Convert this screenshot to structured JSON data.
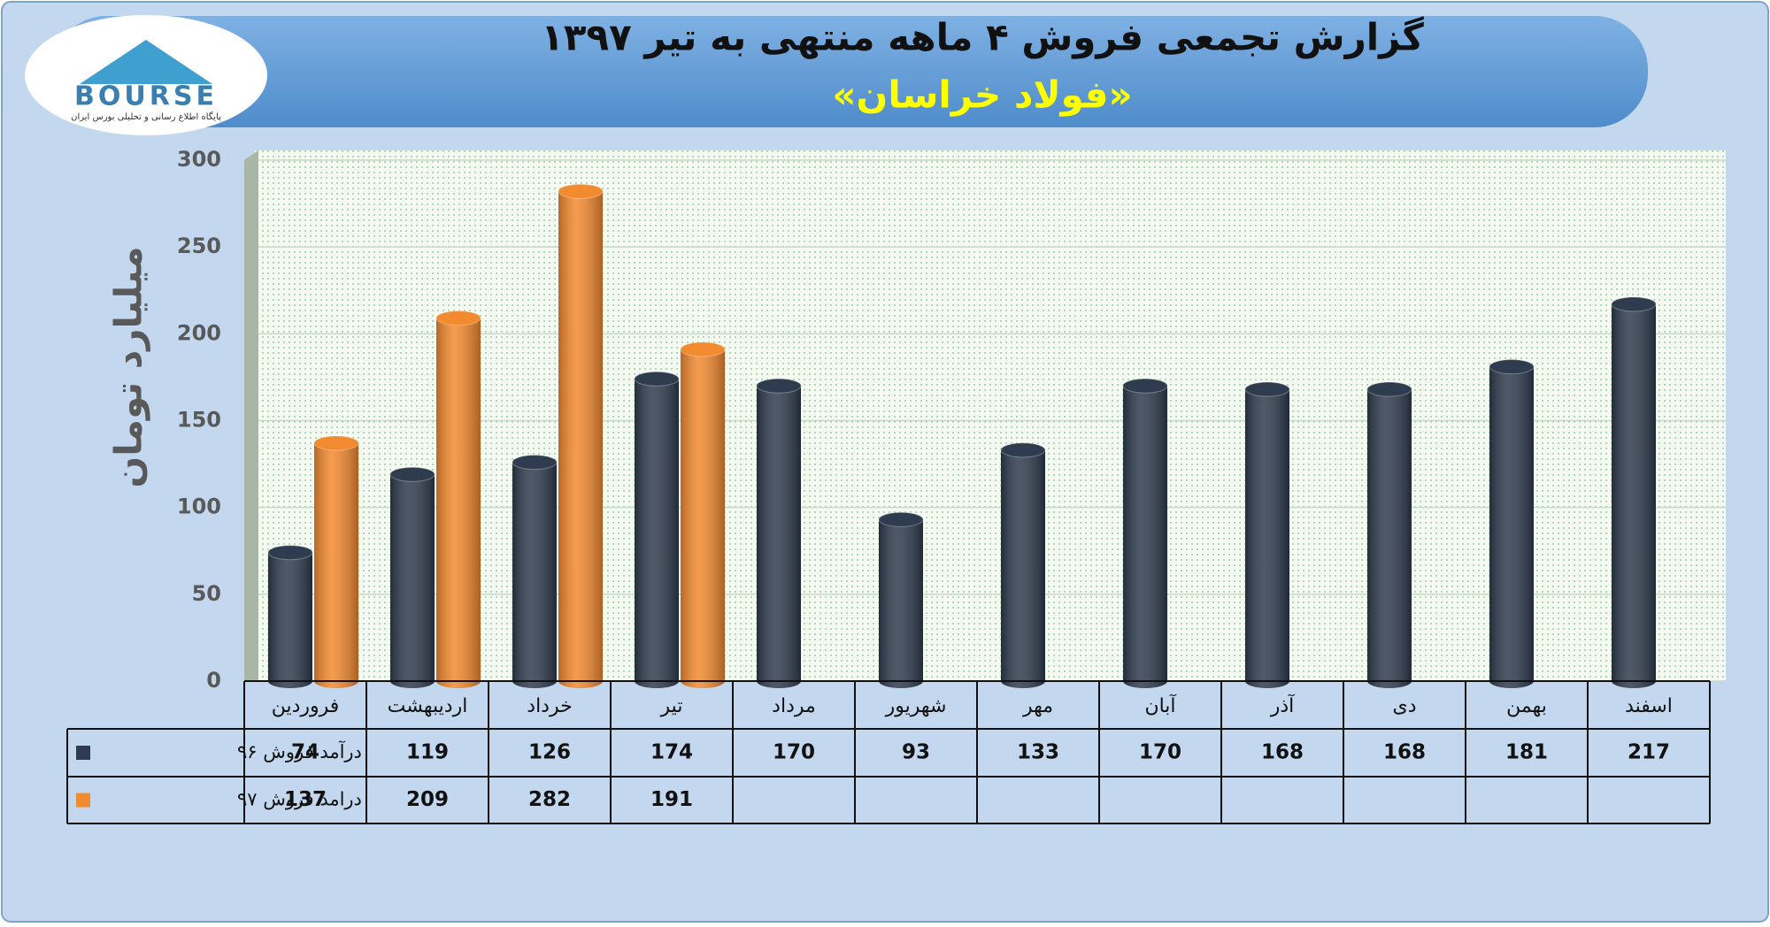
{
  "logo": {
    "text": "BOURSE",
    "tagline": "پایگاه اطلاع رسانی و تحلیلی بورس ایران"
  },
  "chart_data": {
    "type": "bar",
    "title": "گزارش تجمعی فروش ۴ ماهه منتهی به تیر ۱۳۹۷",
    "subtitle": "«فولاد خراسان»",
    "y_label": "میلیارد تومان",
    "categories": [
      "فروردین",
      "اردیبهشت",
      "خرداد",
      "تیر",
      "مرداد",
      "شهریور",
      "مهر",
      "آبان",
      "آذر",
      "دی",
      "بهمن",
      "اسفند"
    ],
    "series": [
      {
        "name": "درآمد فروش ۹۶",
        "color": "#2f3b4e",
        "values": [
          74,
          119,
          126,
          174,
          170,
          93,
          133,
          170,
          168,
          168,
          181,
          217
        ]
      },
      {
        "name": "درامد فروش ۹۷",
        "color": "#f28a30",
        "values": [
          137,
          209,
          282,
          191,
          null,
          null,
          null,
          null,
          null,
          null,
          null,
          null
        ]
      }
    ],
    "ylim": [
      0,
      300
    ],
    "yticks": [
      0,
      50,
      100,
      150,
      200,
      250,
      300
    ],
    "grid": true
  }
}
